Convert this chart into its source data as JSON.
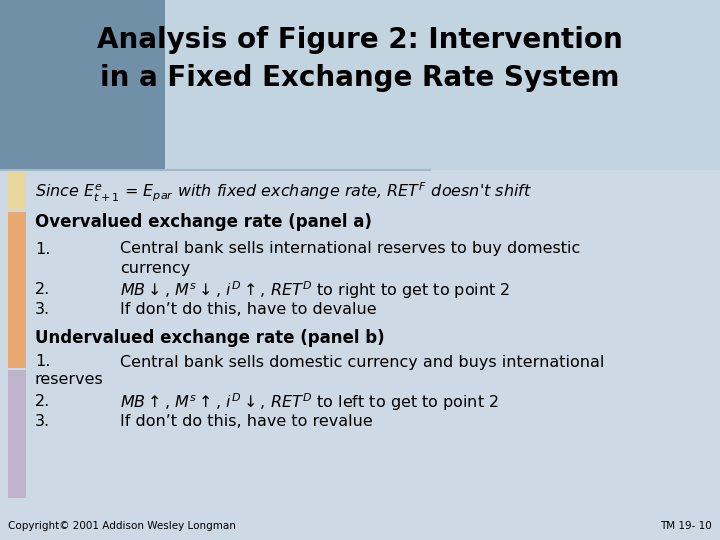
{
  "title_line1": "Analysis of Figure 2: Intervention",
  "title_line2": "in a Fixed Exchange Rate System",
  "title_bg_color": "#c5d5e4",
  "title_left_col1": "#6688aa",
  "title_left_col2": "#8aaac4",
  "body_bg_color": "#d0dde8",
  "bar_yellow": "#e8d8a0",
  "bar_orange": "#e8b878",
  "bar_purple": "#c8bcd8",
  "footer_left": "Copyright© 2001 Addison Wesley Longman",
  "footer_right": "TM 19- 10",
  "title_fontsize": 20,
  "body_fontsize": 11.5,
  "bold_fontsize": 12
}
